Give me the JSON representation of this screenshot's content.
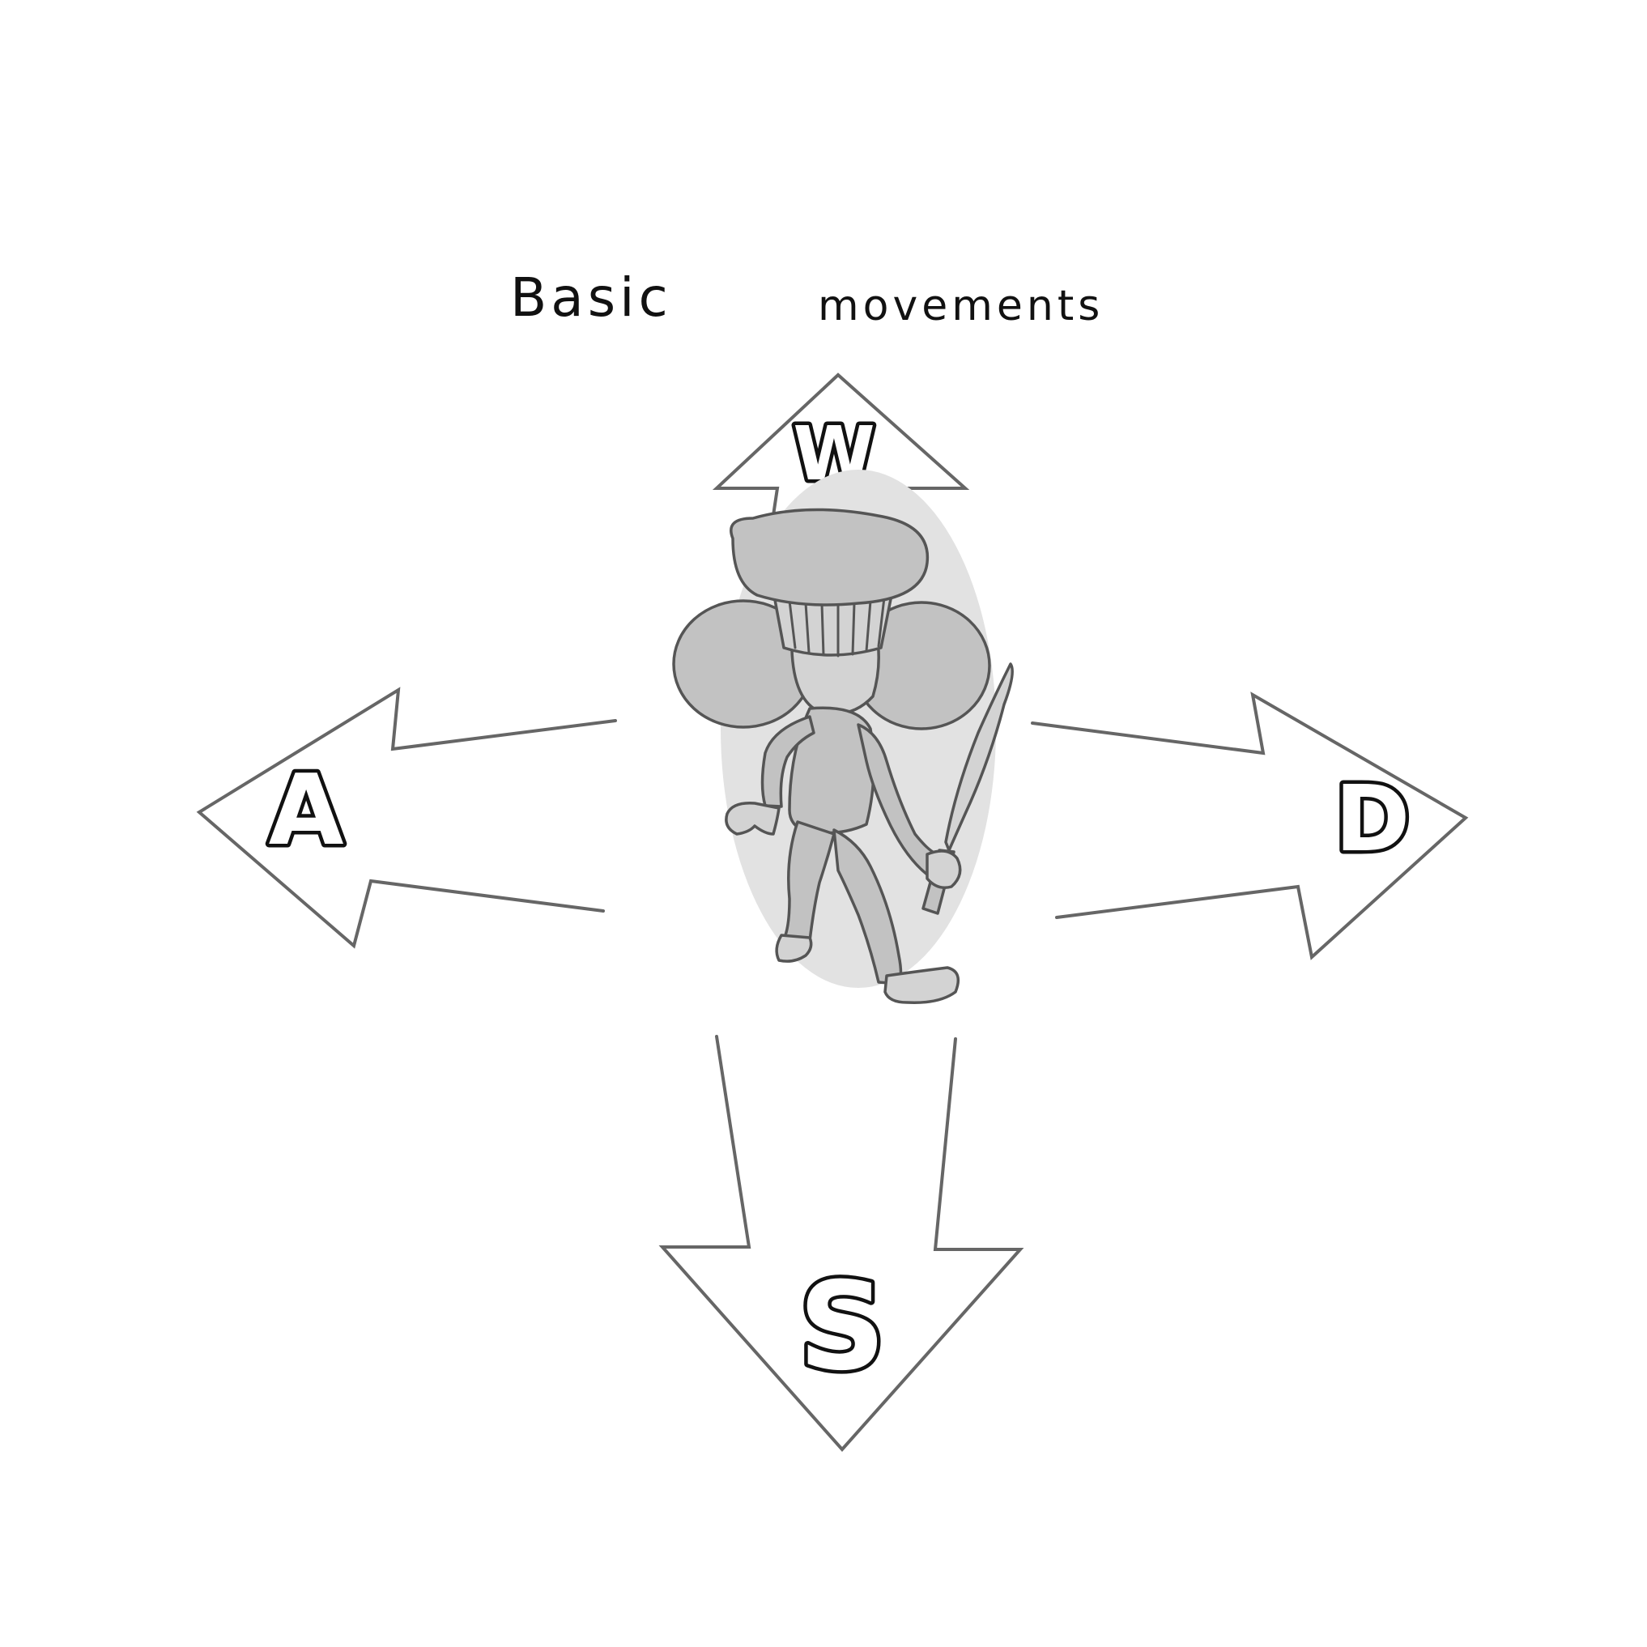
{
  "title": {
    "first_word": "Basic",
    "second_word": "movements"
  },
  "keys": {
    "up": "W",
    "left": "A",
    "down": "S",
    "right": "D"
  },
  "character": {
    "description_icon": "chef-mouse-character"
  },
  "colors": {
    "background": "#ffffff",
    "arrow_outline": "#666666",
    "character_fill": "#c2c2c2",
    "ink": "#111111"
  }
}
